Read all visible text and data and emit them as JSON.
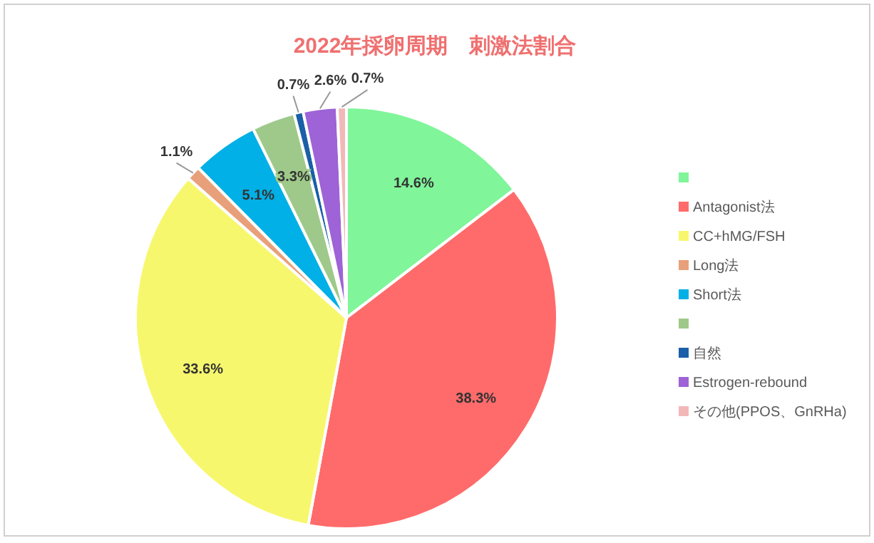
{
  "chart_data": {
    "type": "pie",
    "title": "2022年採卵周期　刺激法割合",
    "categories": [
      null,
      "Antagonist法",
      "CC+hMG/FSH",
      "Long法",
      "Short法",
      null,
      "自然",
      "Estrogen-rebound",
      "その他(PPOS、GnRHa)"
    ],
    "values": [
      14.6,
      38.3,
      33.6,
      1.1,
      5.1,
      3.3,
      0.7,
      2.6,
      0.7
    ],
    "colors": [
      "#80f59a",
      "#ff6b6b",
      "#f7f76e",
      "#e8a07a",
      "#00b0e6",
      "#9ec98a",
      "#1a5fa8",
      "#9e63d6",
      "#f2b8b8"
    ],
    "value_labels": [
      "14.6%",
      "38.3%",
      "33.6%",
      "1.1%",
      "5.1%",
      "3.3%",
      "0.7%",
      "2.6%",
      "0.7%"
    ],
    "legend": "right"
  }
}
